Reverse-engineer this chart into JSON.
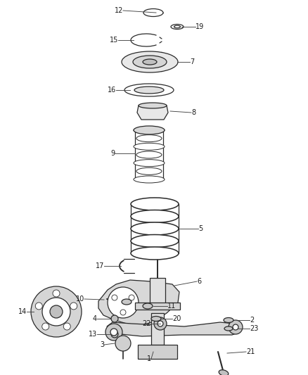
{
  "bg_color": "#ffffff",
  "line_color": "#2a2a2a",
  "label_color": "#1a1a1a",
  "fig_width": 4.38,
  "fig_height": 5.33,
  "lw": 0.9,
  "label_fs": 7.0
}
